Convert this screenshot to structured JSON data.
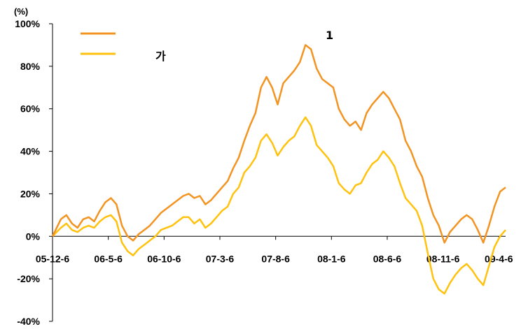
{
  "chart_data": {
    "type": "line",
    "title": "",
    "y_unit_label": "(%)",
    "xlabel": "",
    "ylabel": "",
    "ylim": [
      -40,
      100
    ],
    "y_ticks": [
      100,
      80,
      60,
      40,
      20,
      0,
      -20,
      -40
    ],
    "y_tick_labels": [
      "100%",
      "80%",
      "60%",
      "40%",
      "20%",
      "0%",
      "-20%",
      "-40%"
    ],
    "x_tick_labels": [
      "05-12-6",
      "06-5-6",
      "06-10-6",
      "07-3-6",
      "07-8-6",
      "08-1-6",
      "08-6-6",
      "08-11-6",
      "09-4-6"
    ],
    "grid": false,
    "legend_position": "top-left",
    "series": [
      {
        "name": "1",
        "color": "#F39422",
        "points": [
          [
            0,
            0
          ],
          [
            3,
            8
          ],
          [
            5,
            10
          ],
          [
            7,
            6
          ],
          [
            9,
            4
          ],
          [
            11,
            8
          ],
          [
            13,
            9
          ],
          [
            15,
            7
          ],
          [
            17,
            12
          ],
          [
            19,
            16
          ],
          [
            21,
            18
          ],
          [
            23,
            15
          ],
          [
            25,
            5
          ],
          [
            27,
            0
          ],
          [
            29,
            -2
          ],
          [
            31,
            1
          ],
          [
            33,
            3
          ],
          [
            35,
            5
          ],
          [
            37,
            8
          ],
          [
            39,
            11
          ],
          [
            41,
            13
          ],
          [
            43,
            15
          ],
          [
            45,
            17
          ],
          [
            47,
            19
          ],
          [
            49,
            20
          ],
          [
            51,
            18
          ],
          [
            53,
            19
          ],
          [
            55,
            15
          ],
          [
            57,
            17
          ],
          [
            59,
            20
          ],
          [
            61,
            23
          ],
          [
            63,
            26
          ],
          [
            65,
            32
          ],
          [
            67,
            37
          ],
          [
            69,
            45
          ],
          [
            71,
            52
          ],
          [
            73,
            58
          ],
          [
            75,
            70
          ],
          [
            77,
            75
          ],
          [
            79,
            70
          ],
          [
            81,
            62
          ],
          [
            83,
            72
          ],
          [
            85,
            75
          ],
          [
            87,
            78
          ],
          [
            89,
            82
          ],
          [
            91,
            90
          ],
          [
            93,
            88
          ],
          [
            95,
            79
          ],
          [
            97,
            74
          ],
          [
            99,
            72
          ],
          [
            101,
            70
          ],
          [
            103,
            60
          ],
          [
            105,
            55
          ],
          [
            107,
            52
          ],
          [
            109,
            54
          ],
          [
            111,
            50
          ],
          [
            113,
            58
          ],
          [
            115,
            62
          ],
          [
            117,
            65
          ],
          [
            119,
            68
          ],
          [
            121,
            65
          ],
          [
            123,
            60
          ],
          [
            125,
            55
          ],
          [
            127,
            45
          ],
          [
            129,
            40
          ],
          [
            131,
            33
          ],
          [
            133,
            28
          ],
          [
            135,
            18
          ],
          [
            137,
            10
          ],
          [
            139,
            5
          ],
          [
            141,
            -3
          ],
          [
            143,
            2
          ],
          [
            145,
            5
          ],
          [
            147,
            8
          ],
          [
            149,
            10
          ],
          [
            151,
            8
          ],
          [
            153,
            3
          ],
          [
            155,
            -3
          ],
          [
            157,
            5
          ],
          [
            159,
            14
          ],
          [
            161,
            21
          ],
          [
            163,
            23
          ]
        ]
      },
      {
        "name": "가",
        "color": "#FFC20E",
        "points": [
          [
            0,
            0
          ],
          [
            3,
            4
          ],
          [
            5,
            6
          ],
          [
            7,
            3
          ],
          [
            9,
            2
          ],
          [
            11,
            4
          ],
          [
            13,
            5
          ],
          [
            15,
            4
          ],
          [
            17,
            7
          ],
          [
            19,
            9
          ],
          [
            21,
            10
          ],
          [
            23,
            7
          ],
          [
            25,
            -3
          ],
          [
            27,
            -7
          ],
          [
            29,
            -9
          ],
          [
            31,
            -6
          ],
          [
            33,
            -4
          ],
          [
            35,
            -2
          ],
          [
            37,
            0
          ],
          [
            39,
            3
          ],
          [
            41,
            4
          ],
          [
            43,
            5
          ],
          [
            45,
            7
          ],
          [
            47,
            9
          ],
          [
            49,
            9
          ],
          [
            51,
            6
          ],
          [
            53,
            8
          ],
          [
            55,
            4
          ],
          [
            57,
            6
          ],
          [
            59,
            9
          ],
          [
            61,
            12
          ],
          [
            63,
            14
          ],
          [
            65,
            20
          ],
          [
            67,
            23
          ],
          [
            69,
            30
          ],
          [
            71,
            33
          ],
          [
            73,
            37
          ],
          [
            75,
            45
          ],
          [
            77,
            48
          ],
          [
            79,
            44
          ],
          [
            81,
            38
          ],
          [
            83,
            42
          ],
          [
            85,
            45
          ],
          [
            87,
            47
          ],
          [
            89,
            52
          ],
          [
            91,
            56
          ],
          [
            93,
            52
          ],
          [
            95,
            43
          ],
          [
            97,
            40
          ],
          [
            99,
            37
          ],
          [
            101,
            33
          ],
          [
            103,
            25
          ],
          [
            105,
            22
          ],
          [
            107,
            20
          ],
          [
            109,
            24
          ],
          [
            111,
            25
          ],
          [
            113,
            30
          ],
          [
            115,
            34
          ],
          [
            117,
            36
          ],
          [
            119,
            40
          ],
          [
            121,
            37
          ],
          [
            123,
            33
          ],
          [
            125,
            25
          ],
          [
            127,
            18
          ],
          [
            129,
            15
          ],
          [
            131,
            12
          ],
          [
            133,
            5
          ],
          [
            135,
            -8
          ],
          [
            137,
            -20
          ],
          [
            139,
            -25
          ],
          [
            141,
            -27
          ],
          [
            143,
            -22
          ],
          [
            145,
            -18
          ],
          [
            147,
            -15
          ],
          [
            149,
            -13
          ],
          [
            151,
            -16
          ],
          [
            153,
            -20
          ],
          [
            155,
            -23
          ],
          [
            157,
            -14
          ],
          [
            159,
            -5
          ],
          [
            161,
            0
          ],
          [
            163,
            3
          ]
        ]
      }
    ]
  }
}
